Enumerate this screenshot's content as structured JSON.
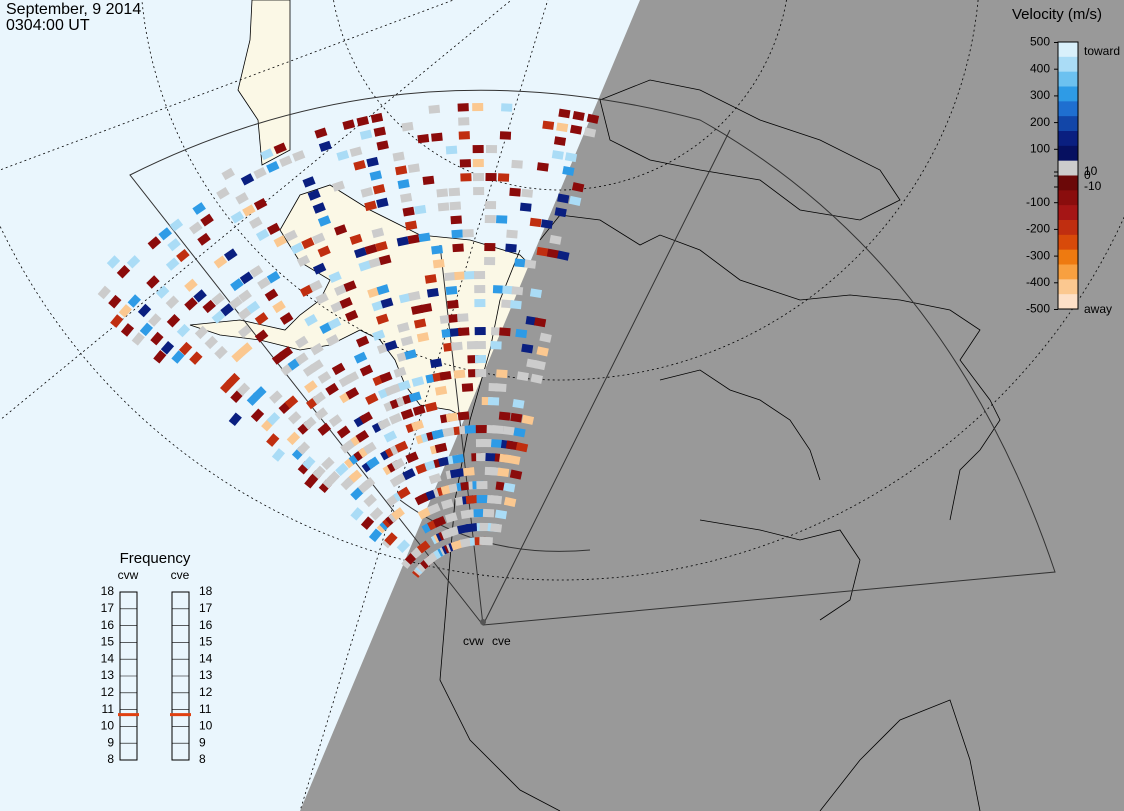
{
  "header": {
    "date": "September, 9 2014",
    "time": "0304:00 UT"
  },
  "velocity_scale": {
    "title": "Velocity (m/s)",
    "ticks": [
      500,
      400,
      300,
      200,
      100,
      10,
      0,
      -10,
      -100,
      -200,
      -300,
      -400,
      -500
    ],
    "toward": "toward",
    "away": "away"
  },
  "frequency": {
    "title": "Frequency",
    "ticks": [
      18,
      17,
      16,
      15,
      14,
      13,
      12,
      11,
      10,
      9,
      8
    ],
    "radars": [
      {
        "name": "cvw",
        "value": 10.7
      },
      {
        "name": "cve",
        "value": 10.7
      }
    ]
  },
  "radar_sites": [
    "cvw",
    "cve"
  ]
}
